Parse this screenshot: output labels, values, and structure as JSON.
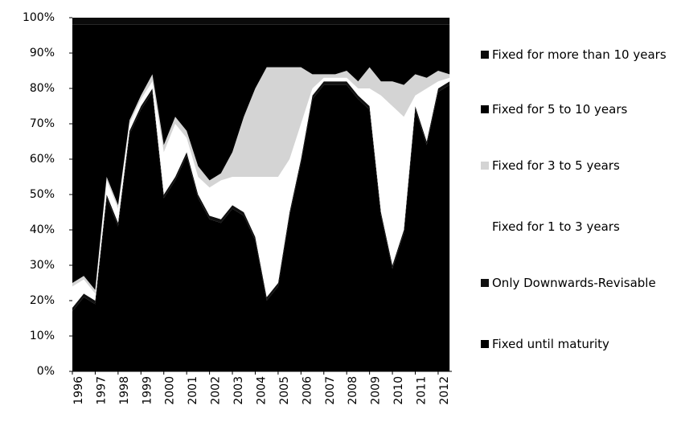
{
  "chart_data": {
    "type": "stacked_area",
    "x": [
      1996,
      1996.5,
      1997,
      1997.5,
      1998,
      1998.5,
      1999,
      1999.5,
      2000,
      2000.5,
      2001,
      2001.5,
      2002,
      2002.5,
      2003,
      2003.5,
      2004,
      2004.5,
      2005,
      2005.5,
      2006,
      2006.5,
      2007,
      2007.5,
      2008,
      2008.5,
      2009,
      2009.5,
      2010,
      2010.5,
      2011,
      2011.5,
      2012,
      2012.5
    ],
    "xlim": [
      1996,
      2012.6
    ],
    "xticks": [
      1996,
      1997,
      1998,
      1999,
      2000,
      2001,
      2002,
      2003,
      2004,
      2005,
      2006,
      2007,
      2008,
      2009,
      2010,
      2011,
      2012
    ],
    "ylim": [
      0,
      100
    ],
    "yticks": [
      {
        "value": 0,
        "label": "0%"
      },
      {
        "value": 10,
        "label": "10%"
      },
      {
        "value": 20,
        "label": "20%"
      },
      {
        "value": 30,
        "label": "30%"
      },
      {
        "value": 40,
        "label": "40%"
      },
      {
        "value": 50,
        "label": "50%"
      },
      {
        "value": 60,
        "label": "60%"
      },
      {
        "value": 70,
        "label": "70%"
      },
      {
        "value": 80,
        "label": "80%"
      },
      {
        "value": 90,
        "label": "90%"
      },
      {
        "value": 100,
        "label": "100%"
      }
    ],
    "legend_position": "right",
    "series": [
      {
        "name": "Fixed until maturity",
        "color": "#000000",
        "values": [
          17,
          21,
          19,
          49,
          41,
          67,
          74,
          79,
          49,
          54,
          61,
          49,
          43,
          42,
          46,
          44,
          37,
          20,
          24,
          44,
          59,
          77,
          81,
          81,
          81,
          77,
          74,
          44,
          29,
          39,
          74,
          64,
          79,
          81
        ]
      },
      {
        "name": "Only Downwards-Revisable",
        "color": "#111111",
        "values": [
          1,
          1,
          1,
          1,
          1,
          1,
          1,
          1,
          1,
          1,
          1,
          1,
          1,
          1,
          1,
          1,
          1,
          1,
          1,
          1,
          1,
          1,
          1,
          1,
          1,
          1,
          1,
          1,
          1,
          1,
          1,
          1,
          1,
          1
        ]
      },
      {
        "name": "Fixed for 1 to 3 years",
        "color": "#ffffff",
        "values": [
          6,
          4,
          2,
          4,
          4,
          2,
          2,
          2,
          12,
          15,
          4,
          5,
          8,
          11,
          8,
          10,
          17,
          34,
          30,
          15,
          10,
          2,
          1,
          1,
          1,
          2,
          5,
          33,
          45,
          32,
          3,
          15,
          2,
          1
        ]
      },
      {
        "name": "Fixed for 3 to 5 years",
        "color": "#d4d4d4",
        "values": [
          1,
          1,
          1,
          1,
          1,
          1,
          1,
          2,
          2,
          2,
          2,
          3,
          2,
          2,
          7,
          17,
          25,
          31,
          31,
          26,
          16,
          4,
          1,
          1,
          2,
          2,
          6,
          4,
          7,
          9,
          6,
          3,
          3,
          1
        ]
      },
      {
        "name": "Fixed for 5 to 10 years",
        "color": "#000000",
        "values": [
          73,
          71,
          75,
          43,
          51,
          27,
          20,
          14,
          34,
          26,
          30,
          40,
          44,
          42,
          36,
          26,
          18,
          12,
          12,
          12,
          12,
          14,
          14,
          14,
          13,
          16,
          12,
          16,
          16,
          17,
          14,
          15,
          13,
          14
        ]
      },
      {
        "name": "Fixed for more than 10 years",
        "color": "#0a0a0a",
        "values": [
          2,
          2,
          2,
          2,
          2,
          2,
          2,
          2,
          2,
          2,
          2,
          2,
          2,
          2,
          2,
          2,
          2,
          2,
          2,
          2,
          2,
          2,
          2,
          2,
          2,
          2,
          2,
          2,
          2,
          2,
          2,
          2,
          2,
          2
        ]
      }
    ]
  }
}
